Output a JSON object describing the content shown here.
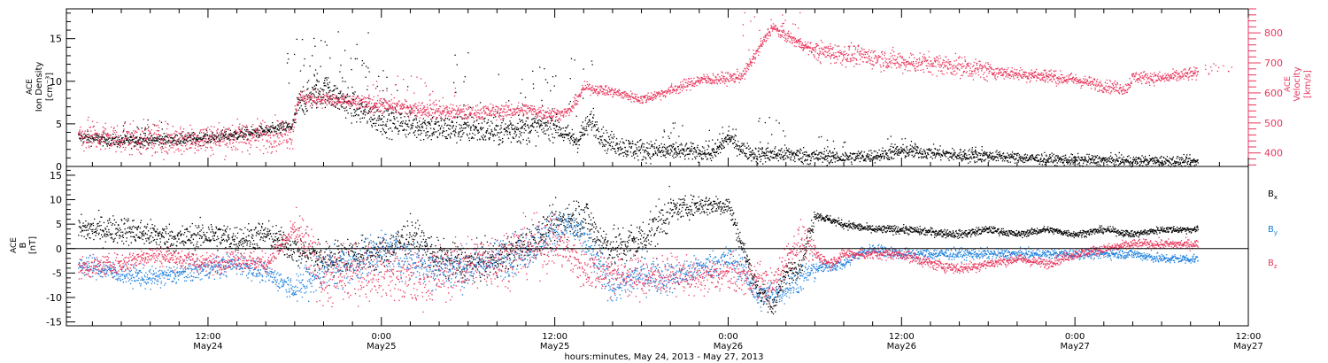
{
  "colors": {
    "black": "#000000",
    "pink": "#e8365c",
    "blue": "#1c7fdc"
  },
  "footer_label": "hours:minutes, May 24, 2013 - May 27, 2013",
  "chart_data": [
    {
      "type": "scatter",
      "panel": "top",
      "x_ticks": [
        {
          "time": "12:00",
          "date": "May24"
        },
        {
          "time": "0:00",
          "date": "May25"
        },
        {
          "time": "12:00",
          "date": "May25"
        },
        {
          "time": "0:00",
          "date": "May26"
        },
        {
          "time": "12:00",
          "date": "May26"
        },
        {
          "time": "0:00",
          "date": "May27"
        },
        {
          "time": "12:00",
          "date": "May27"
        }
      ],
      "xlim_hours": [
        2.2,
        84
      ],
      "left_axis": {
        "label_line1": "ACE",
        "label_line2": "Ion Density",
        "label_line3": "[cm⁻³]",
        "ylim": [
          0,
          18.5
        ],
        "ticks": [
          0,
          5,
          10,
          15
        ]
      },
      "right_axis": {
        "label_line1": "ACE",
        "label_line2": "Velocity",
        "label_line3": "[km/s]",
        "ylim": [
          355,
          880
        ],
        "ticks": [
          400,
          500,
          600,
          700,
          800
        ]
      },
      "series": [
        {
          "name": "Ion Density",
          "color": "#000000",
          "axis": "left",
          "points": [
            [
              3,
              3.5
            ],
            [
              6,
              3.0
            ],
            [
              9,
              3.2
            ],
            [
              12,
              3.4
            ],
            [
              14,
              3.8
            ],
            [
              16,
              4.2
            ],
            [
              17.8,
              4.8
            ],
            [
              18.3,
              7.5
            ],
            [
              20,
              9
            ],
            [
              22,
              7
            ],
            [
              24,
              5.5
            ],
            [
              26,
              5
            ],
            [
              28,
              4.5
            ],
            [
              30,
              4.5
            ],
            [
              32,
              4.2
            ],
            [
              34,
              4.5
            ],
            [
              36,
              5
            ],
            [
              36.5,
              4
            ],
            [
              37.5,
              3
            ],
            [
              38.5,
              5.5
            ],
            [
              39.5,
              3
            ],
            [
              40,
              2.8
            ],
            [
              41,
              2.2
            ],
            [
              42,
              2
            ],
            [
              44,
              1.8
            ],
            [
              46,
              1.8
            ],
            [
              47,
              1.5
            ],
            [
              48,
              3.5
            ],
            [
              49,
              2
            ],
            [
              50,
              1.4
            ],
            [
              52,
              1.5
            ],
            [
              54,
              1.2
            ],
            [
              56,
              1.1
            ],
            [
              58,
              1.3
            ],
            [
              60,
              1.8
            ],
            [
              62,
              1.7
            ],
            [
              64,
              1.3
            ],
            [
              66,
              1.3
            ],
            [
              68,
              1.1
            ],
            [
              70,
              0.9
            ],
            [
              72,
              0.8
            ],
            [
              74,
              0.8
            ],
            [
              76,
              0.7
            ],
            [
              78,
              0.7
            ],
            [
              80,
              0.6
            ]
          ],
          "spikes": [
            [
              7,
              6
            ],
            [
              8,
              5.4
            ],
            [
              18.5,
              15
            ],
            [
              19.5,
              15.2
            ],
            [
              20.5,
              13
            ],
            [
              22,
              16
            ],
            [
              23,
              13
            ],
            [
              25,
              11.5
            ],
            [
              30,
              13.5
            ],
            [
              33,
              11
            ],
            [
              35,
              12
            ],
            [
              38,
              13
            ],
            [
              44,
              5.5
            ],
            [
              47.5,
              4.8
            ],
            [
              51,
              6
            ],
            [
              55,
              4
            ],
            [
              60,
              4
            ],
            [
              65,
              2.6
            ]
          ],
          "noise": [
            0.5,
            1.2,
            0.9,
            0.7,
            0.55,
            0.45
          ]
        },
        {
          "name": "Velocity",
          "color": "#e8365c",
          "axis": "right",
          "points": [
            [
              3,
              462
            ],
            [
              6,
              450
            ],
            [
              9,
              447
            ],
            [
              12,
              450
            ],
            [
              14,
              455
            ],
            [
              16,
              462
            ],
            [
              17.8,
              470
            ],
            [
              18.2,
              585
            ],
            [
              20,
              580
            ],
            [
              22,
              570
            ],
            [
              24,
              560
            ],
            [
              26,
              550
            ],
            [
              28,
              540
            ],
            [
              30,
              535
            ],
            [
              32,
              540
            ],
            [
              34,
              545
            ],
            [
              36,
              530
            ],
            [
              37,
              540
            ],
            [
              38,
              620
            ],
            [
              40,
              605
            ],
            [
              42,
              580
            ],
            [
              44,
              610
            ],
            [
              46,
              645
            ],
            [
              48,
              650
            ],
            [
              49,
              660
            ],
            [
              50,
              740
            ],
            [
              51,
              820
            ],
            [
              52,
              790
            ],
            [
              54,
              740
            ],
            [
              56,
              730
            ],
            [
              58,
              720
            ],
            [
              60,
              705
            ],
            [
              62,
              700
            ],
            [
              64,
              690
            ],
            [
              66,
              675
            ],
            [
              68,
              665
            ],
            [
              70,
              655
            ],
            [
              72,
              645
            ],
            [
              74,
              625
            ],
            [
              75.5,
              615
            ],
            [
              76,
              655
            ],
            [
              78,
              650
            ],
            [
              80,
              665
            ],
            [
              82,
              660
            ],
            [
              84,
              658
            ]
          ],
          "spikes": [
            [
              24,
              680
            ],
            [
              26,
              660
            ],
            [
              28,
              650
            ],
            [
              50,
              885
            ],
            [
              52,
              872
            ],
            [
              54,
              760
            ],
            [
              70,
              680
            ],
            [
              82,
              700
            ]
          ],
          "noise": [
            38,
            18,
            12,
            14,
            25,
            15
          ]
        }
      ]
    },
    {
      "type": "scatter",
      "panel": "bottom",
      "xlim_hours": [
        2.2,
        84
      ],
      "left_axis": {
        "label_line1": "ACE",
        "label_line2": "B",
        "label_line3": "[nT]",
        "ylim": [
          -15.8,
          16.8
        ],
        "ticks": [
          -15,
          -10,
          -5,
          0,
          5,
          10,
          15
        ]
      },
      "zero_line": 0,
      "series": [
        {
          "name": "B",
          "sub": "x",
          "color": "#000000",
          "points": [
            [
              3,
              4
            ],
            [
              6,
              4
            ],
            [
              8,
              3
            ],
            [
              10,
              2
            ],
            [
              12,
              3
            ],
            [
              14,
              2
            ],
            [
              16,
              3
            ],
            [
              18,
              0
            ],
            [
              20,
              -2
            ],
            [
              22,
              -1
            ],
            [
              24,
              -1
            ],
            [
              26,
              3
            ],
            [
              28,
              -2
            ],
            [
              30,
              -3
            ],
            [
              32,
              -2
            ],
            [
              34,
              1
            ],
            [
              36,
              5
            ],
            [
              38,
              7
            ],
            [
              39,
              2
            ],
            [
              40,
              0
            ],
            [
              42,
              2
            ],
            [
              44,
              8
            ],
            [
              46,
              9
            ],
            [
              48,
              9
            ],
            [
              49,
              0
            ],
            [
              50,
              -8
            ],
            [
              51,
              -12
            ],
            [
              52,
              -5
            ],
            [
              53,
              -3
            ],
            [
              54,
              7
            ],
            [
              56,
              5
            ],
            [
              58,
              4
            ],
            [
              60,
              4
            ],
            [
              62,
              3.5
            ],
            [
              64,
              3
            ],
            [
              66,
              4
            ],
            [
              68,
              3
            ],
            [
              70,
              4
            ],
            [
              72,
              3
            ],
            [
              74,
              4
            ],
            [
              76,
              3
            ],
            [
              78,
              4
            ],
            [
              80,
              4
            ]
          ],
          "noise": [
            2.0,
            2.5,
            3.0,
            1.5,
            0.6,
            0.5
          ]
        },
        {
          "name": "B",
          "sub": "y",
          "color": "#1c7fdc",
          "points": [
            [
              3,
              -3
            ],
            [
              6,
              -5
            ],
            [
              8,
              -6
            ],
            [
              10,
              -5
            ],
            [
              12,
              -4
            ],
            [
              14,
              -3
            ],
            [
              16,
              -5
            ],
            [
              18,
              -8
            ],
            [
              20,
              -4
            ],
            [
              22,
              -3
            ],
            [
              24,
              0
            ],
            [
              26,
              -2
            ],
            [
              28,
              -4
            ],
            [
              30,
              -4
            ],
            [
              32,
              -2
            ],
            [
              34,
              0
            ],
            [
              36,
              4
            ],
            [
              37,
              5
            ],
            [
              38,
              2
            ],
            [
              40,
              -8
            ],
            [
              42,
              -5
            ],
            [
              44,
              -6
            ],
            [
              46,
              -4
            ],
            [
              48,
              -2
            ],
            [
              49,
              -4
            ],
            [
              50,
              -10
            ],
            [
              52,
              -8
            ],
            [
              53,
              -6
            ],
            [
              54,
              -4
            ],
            [
              56,
              -3
            ],
            [
              57,
              -1
            ],
            [
              58,
              0
            ],
            [
              60,
              -1
            ],
            [
              62,
              -1
            ],
            [
              64,
              -1
            ],
            [
              66,
              -1
            ],
            [
              68,
              -1
            ],
            [
              70,
              -1
            ],
            [
              72,
              -1
            ],
            [
              74,
              -1
            ],
            [
              76,
              -1
            ],
            [
              78,
              -2
            ],
            [
              80,
              -2
            ]
          ],
          "noise": [
            1.5,
            3.0,
            2.5,
            2.0,
            0.8,
            0.7
          ]
        },
        {
          "name": "B",
          "sub": "z",
          "color": "#e8365c",
          "points": [
            [
              3,
              -4
            ],
            [
              6,
              -3
            ],
            [
              8,
              -1
            ],
            [
              10,
              -2
            ],
            [
              12,
              -3
            ],
            [
              14,
              -2
            ],
            [
              16,
              -3
            ],
            [
              18,
              4
            ],
            [
              20,
              -6
            ],
            [
              22,
              -5
            ],
            [
              24,
              -4
            ],
            [
              26,
              -6
            ],
            [
              28,
              -5
            ],
            [
              30,
              -3
            ],
            [
              32,
              -2
            ],
            [
              34,
              0
            ],
            [
              36,
              2
            ],
            [
              38,
              -4
            ],
            [
              40,
              -5
            ],
            [
              42,
              -6
            ],
            [
              44,
              -5
            ],
            [
              46,
              -6
            ],
            [
              48,
              -5
            ],
            [
              49,
              -6
            ],
            [
              50,
              -6
            ],
            [
              51,
              -8
            ],
            [
              52,
              -2
            ],
            [
              53,
              2
            ],
            [
              54,
              -1
            ],
            [
              55,
              -3
            ],
            [
              56,
              -1
            ],
            [
              58,
              -1
            ],
            [
              60,
              -1
            ],
            [
              62,
              -3
            ],
            [
              64,
              -4
            ],
            [
              66,
              -3
            ],
            [
              68,
              -2
            ],
            [
              70,
              -3
            ],
            [
              72,
              -1
            ],
            [
              74,
              0
            ],
            [
              76,
              1
            ],
            [
              78,
              1
            ],
            [
              80,
              1
            ]
          ],
          "noise": [
            1.5,
            4.0,
            3.0,
            2.5,
            0.8,
            0.7
          ]
        }
      ]
    }
  ]
}
